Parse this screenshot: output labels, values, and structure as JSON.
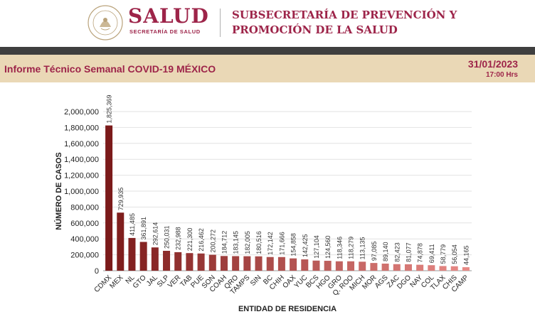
{
  "header": {
    "logo_seal_text": "ESTADOS UNIDOS MEXICANOS",
    "brand": "SALUD",
    "brand_subtitle": "SECRETARÍA DE SALUD",
    "subsecretaria_line1": "SUBSECRETARÍA DE PREVENCIÓN Y",
    "subsecretaria_line2": "PROMOCIÓN DE LA SALUD"
  },
  "report": {
    "title": "Informe Técnico Semanal COVID-19 MÉXICO",
    "date": "31/01/2023",
    "time": "17:00 Hrs"
  },
  "colors": {
    "brand": "#9d2449",
    "bar_dark": "#7b1a1a",
    "bar_light": "#e88a86"
  },
  "chart_data": {
    "type": "bar",
    "xlabel": "ENTIDAD DE RESIDENCIA",
    "ylabel": "NÚMERO DE CASOS",
    "ylim": [
      0,
      2000000
    ],
    "yticks": [
      "0",
      "200,000",
      "400,000",
      "600,000",
      "800,000",
      "1,000,000",
      "1,200,000",
      "1,400,000",
      "1,600,000",
      "1,800,000",
      "2,000,000"
    ],
    "grid": true,
    "categories": [
      "CDMX",
      "MEX",
      "NL",
      "GTO",
      "JAL",
      "SLP",
      "VER",
      "TAB",
      "PUE",
      "SON",
      "COAH",
      "QRO",
      "TAMPS",
      "SIN",
      "BC",
      "CHIH",
      "OAX",
      "YUC",
      "BCS",
      "HGO",
      "GRO",
      "Q. ROO",
      "MICH",
      "MOR",
      "AGS",
      "ZAC",
      "DGO",
      "NAY",
      "COL",
      "TLAX",
      "CHIS",
      "CAMP"
    ],
    "values": [
      1825369,
      729935,
      411485,
      361891,
      292614,
      250031,
      232988,
      221300,
      216462,
      200272,
      184712,
      183145,
      182005,
      180516,
      172142,
      171666,
      154858,
      142425,
      127104,
      124560,
      118346,
      118279,
      113135,
      97085,
      89140,
      82423,
      81077,
      74878,
      69411,
      58779,
      56054,
      44165
    ],
    "value_labels": [
      "1,825,369",
      "729,935",
      "411,485",
      "361,891",
      "292,614",
      "250,031",
      "232,988",
      "221,300",
      "216,462",
      "200,272",
      "184,712",
      "183,145",
      "182,005",
      "180,516",
      "172,142",
      "171,666",
      "154,858",
      "142,425",
      "127,104",
      "124,560",
      "118,346",
      "118,279",
      "113,135",
      "97,085",
      "89,140",
      "82,423",
      "81,077",
      "74,878",
      "69,411",
      "58,779",
      "56,054",
      "44,165"
    ]
  }
}
